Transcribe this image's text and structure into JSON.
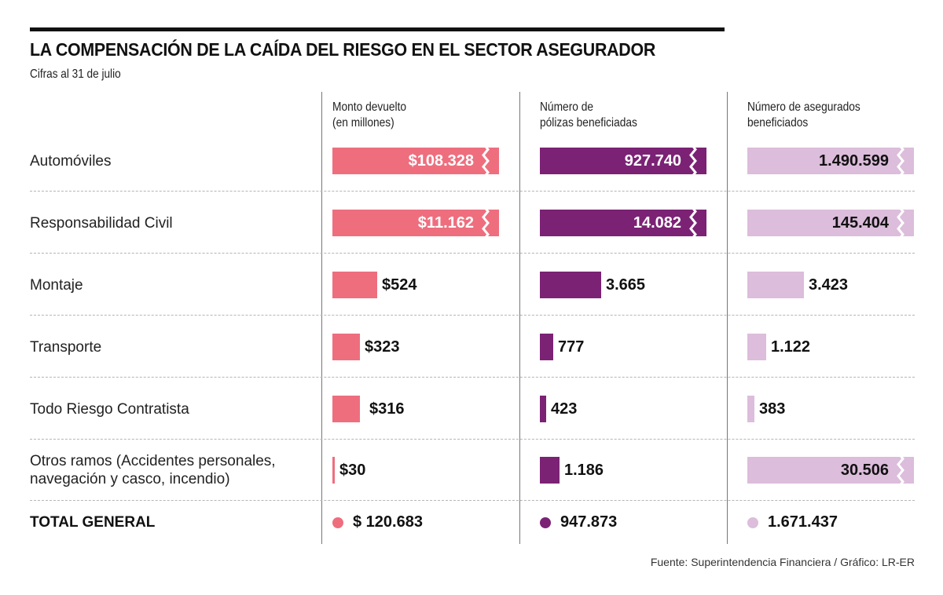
{
  "header": {
    "title": "LA COMPENSACIÓN DE LA CAÍDA DEL RIESGO EN EL SECTOR ASEGURADOR",
    "subtitle": "Cifras al 31 de julio"
  },
  "footer": {
    "source": "Fuente: Superintendencia Financiera / Gráfico: LR-ER"
  },
  "colors": {
    "monto": "#ee6e7e",
    "polizas": "#7b2275",
    "asegurados": "#dcbddb"
  },
  "chart_data": {
    "type": "bar",
    "title": "LA COMPENSACIÓN DE LA CAÍDA DEL RIESGO EN EL SECTOR ASEGURADOR",
    "subtitle": "Cifras al 31 de julio",
    "orientation": "horizontal",
    "categories": [
      "Automóviles",
      "Responsabilidad Civil",
      "Montaje",
      "Transporte",
      "Todo Riesgo Contratista",
      "Otros ramos (Accidentes personales, navegación y casco, incendio)"
    ],
    "category_lines": [
      [
        "Automóviles"
      ],
      [
        "Responsabilidad Civil"
      ],
      [
        "Montaje"
      ],
      [
        "Transporte"
      ],
      [
        "Todo Riesgo Contratista"
      ],
      [
        "Otros ramos (Accidentes personales,",
        "navegación y casco, incendio)"
      ]
    ],
    "series": [
      {
        "name": "Monto devuelto (en millones)",
        "header_lines": [
          "Monto devuelto",
          "(en millones)"
        ],
        "values": [
          108328,
          11162,
          524,
          323,
          316,
          30
        ],
        "labels": [
          "$108.328",
          "$11.162",
          "$524",
          "$323",
          "$316",
          "$30"
        ],
        "broken_axis": [
          true,
          true,
          false,
          false,
          false,
          false
        ],
        "total": 120683,
        "total_label": "$ 120.683"
      },
      {
        "name": "Número de pólizas beneficiadas",
        "header_lines": [
          "Número de",
          "pólizas beneficiadas"
        ],
        "values": [
          927740,
          14082,
          3665,
          777,
          423,
          1186
        ],
        "labels": [
          "927.740",
          "14.082",
          "3.665",
          "777",
          "423",
          "1.186"
        ],
        "broken_axis": [
          true,
          true,
          false,
          false,
          false,
          false
        ],
        "total": 947873,
        "total_label": "947.873"
      },
      {
        "name": "Número de asegurados beneficiados",
        "header_lines": [
          "Número de asegurados",
          "beneficiados"
        ],
        "values": [
          1490599,
          145404,
          3423,
          1122,
          383,
          30506
        ],
        "labels": [
          "1.490.599",
          "145.404",
          "3.423",
          "1.122",
          "383",
          "30.506"
        ],
        "broken_axis": [
          true,
          true,
          false,
          false,
          false,
          true
        ],
        "total": 1671437,
        "total_label": "1.671.437"
      }
    ],
    "total_row_label": "TOTAL GENERAL",
    "legend": "none",
    "grid": "horizontal dashed row separators"
  }
}
